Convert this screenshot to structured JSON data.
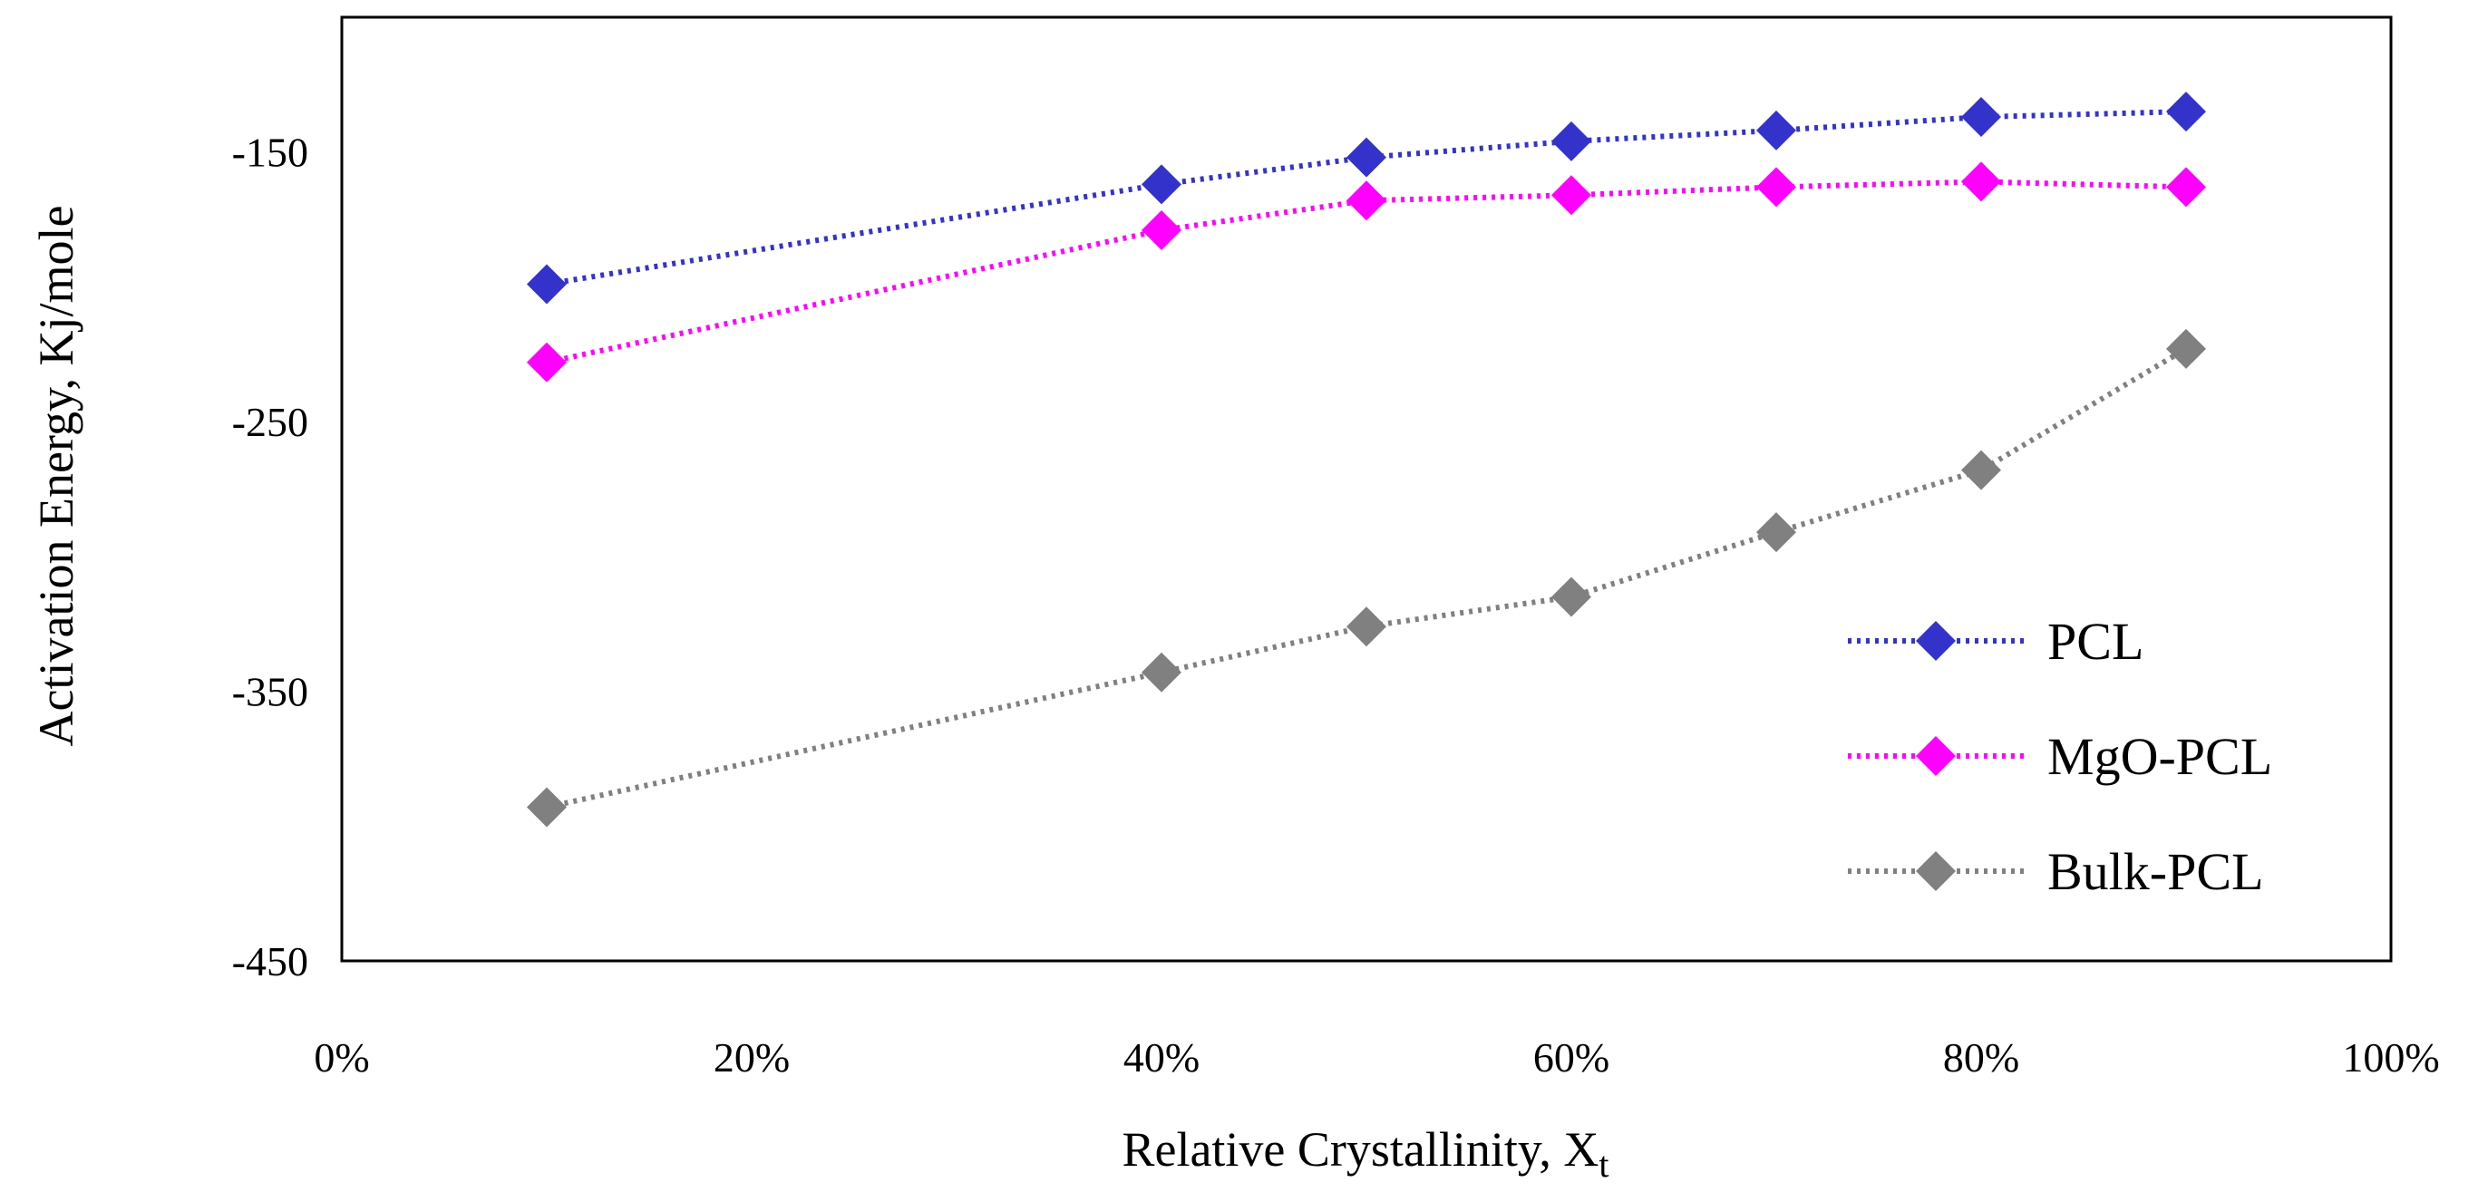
{
  "chart_data": {
    "type": "line",
    "title": "",
    "xlabel": "Relative Crystallinity, X",
    "xlabel_sub": "t",
    "ylabel": "Activation Energy, Kj/mole",
    "xlim": [
      0,
      100
    ],
    "ylim": [
      -450,
      -100
    ],
    "x_ticks": [
      0,
      20,
      40,
      60,
      80,
      100
    ],
    "x_tick_labels": [
      "0%",
      "20%",
      "40%",
      "60%",
      "80%",
      "100%"
    ],
    "y_ticks": [
      -150,
      -250,
      -350,
      -450
    ],
    "y_tick_labels": [
      "-150",
      "-250",
      "-350",
      "-450"
    ],
    "grid": false,
    "legend_position": "bottom-right",
    "x": [
      10,
      40,
      50,
      60,
      70,
      80,
      90
    ],
    "series": [
      {
        "name": "PCL",
        "color": "#3333cc",
        "values": [
          -199,
          -162,
          -152,
          -146,
          -142,
          -137,
          -135
        ]
      },
      {
        "name": "MgO-PCL",
        "color": "#ff00ff",
        "values": [
          -228,
          -179,
          -168,
          -166,
          -163,
          -161,
          -163
        ]
      },
      {
        "name": "Bulk-PCL",
        "color": "#808080",
        "values": [
          -393,
          -343,
          -326,
          -315,
          -291,
          -268,
          -223
        ]
      }
    ]
  }
}
